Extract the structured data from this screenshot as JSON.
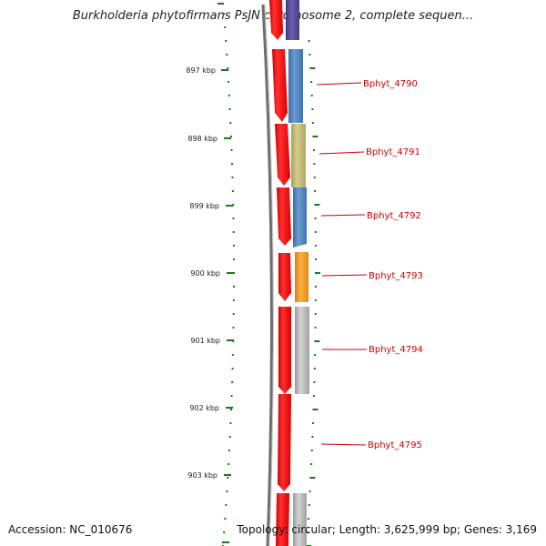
{
  "map": {
    "title": "Burkholderia phytofirmans PsJN chromosome 2, complete sequen...",
    "accession": "Accession: NC_010676",
    "topology": "Topology: circular; Length: 3,625,999 bp; Genes: 3,169"
  },
  "ruler": {
    "ticks": [
      {
        "label": "897 kbp"
      },
      {
        "label": "898 kbp"
      },
      {
        "label": "899 kbp"
      },
      {
        "label": "900 kbp"
      },
      {
        "label": "901 kbp"
      },
      {
        "label": "902 kbp"
      },
      {
        "label": "903 kbp"
      }
    ]
  },
  "genes": [
    {
      "label": "Bphyt_4790",
      "color": "#4f81bd"
    },
    {
      "label": "Bphyt_4791",
      "color": "#c4bd78"
    },
    {
      "label": "Bphyt_4792",
      "color": "#4f81bd"
    },
    {
      "label": "Bphyt_4793",
      "color": "#f39c12"
    },
    {
      "label": "Bphyt_4794",
      "color": "#b0b0b0"
    },
    {
      "label": "Bphyt_4795",
      "color": "#ffffff"
    }
  ],
  "colors": {
    "forward_strand": "#ff0000",
    "label_line": "#cc0000",
    "tick": "#1a7a1a",
    "backbone": "#888888"
  }
}
